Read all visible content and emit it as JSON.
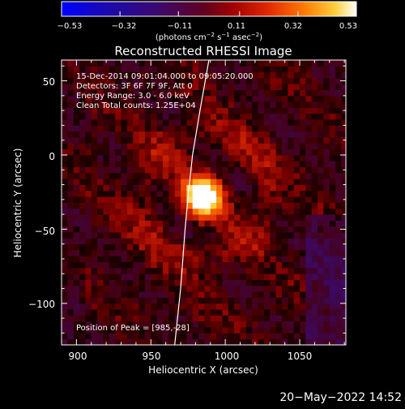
{
  "chart_data": {
    "type": "heatmap",
    "title": "Reconstructed RHESSI Image",
    "xlabel": "Heliocentric X (arcsec)",
    "ylabel": "Heliocentric Y (arcsec)",
    "xlim": [
      890,
      1081
    ],
    "ylim": [
      -128,
      64
    ],
    "x_ticks": [
      900,
      950,
      1000,
      1050
    ],
    "x_tick_labels": [
      "900",
      "950",
      "1000",
      "1050"
    ],
    "y_ticks": [
      50,
      0,
      -50,
      -100
    ],
    "y_tick_labels": [
      "50",
      "0",
      "−50",
      "−100"
    ],
    "colorbar": {
      "range": [
        -0.53,
        0.53
      ],
      "ticks": [
        -0.53,
        -0.32,
        -0.11,
        0.11,
        0.32,
        0.53
      ],
      "tick_labels": [
        "−0.53",
        "−0.32",
        "−0.11",
        "0.11",
        "0.32",
        "0.53"
      ],
      "units_prefix": "(photons cm",
      "units_sup1": "−2",
      "units_mid": " s",
      "units_sup2": "−1",
      "units_mid2": " asec",
      "units_sup3": "−2",
      "units_suffix": ")"
    },
    "annotations": {
      "time_range": "15-Dec-2014 09:01:04.000 to 09:05:20.000",
      "detectors": "Detectors: 3F 6F 7F 9F, Att 0",
      "energy": "Energy Range: 3.0 - 6.0 keV",
      "clean": "Clean     Total counts: 1.25E+04",
      "peak": "Position of Peak = [985,-28]"
    },
    "peak": {
      "x": 985,
      "y": -28,
      "value": 0.53
    },
    "limb_curve": [
      [
        989,
        64
      ],
      [
        983,
        30
      ],
      [
        978,
        0
      ],
      [
        975,
        -28
      ],
      [
        973,
        -50
      ],
      [
        970,
        -90
      ],
      [
        966,
        -128
      ]
    ],
    "grid_step_arcsec": 4,
    "colors": {
      "background": "#000000",
      "colortable": [
        "#0000ff",
        "#1010a0",
        "#2a1060",
        "#400040",
        "#8b0000",
        "#cc2000",
        "#ff6000",
        "#ffb000",
        "#ffff80",
        "#ffffff"
      ]
    }
  },
  "footer": {
    "date": "20−May−2022 14:52"
  }
}
